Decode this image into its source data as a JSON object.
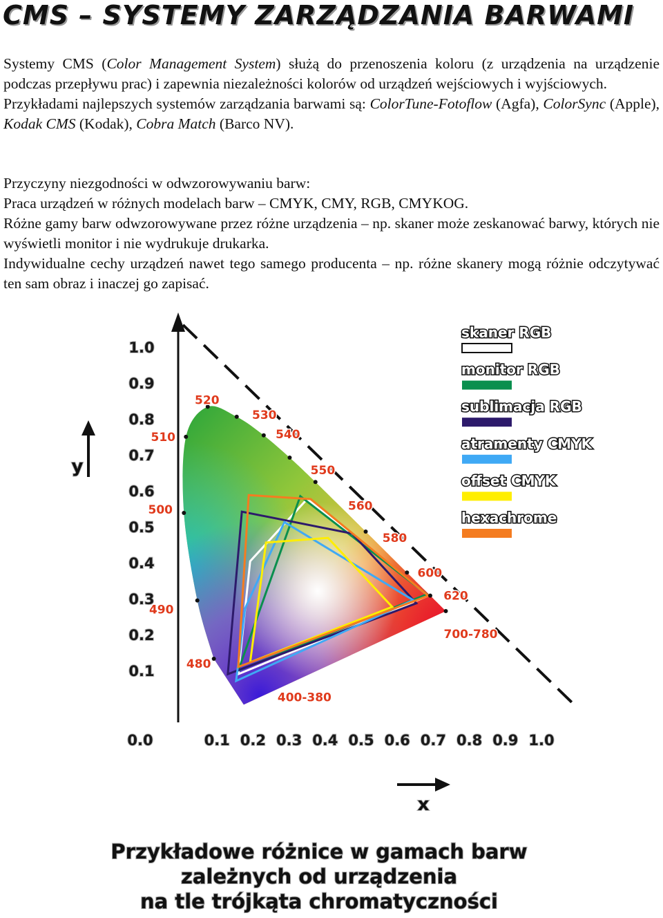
{
  "header": {
    "title": "CMS – SYSTEMY ZARZĄDZANIA BARWAMI"
  },
  "intro": [
    "Systemy CMS (",
    "Color Management System",
    ") służą do przenoszenia koloru (z urządzenia na urządzenie podczas przepływu prac) i zapewnia niezależności kolorów od urządzeń wejściowych i wyjściowych.",
    "Przykładami najlepszych systemów zarządzania barwami są:",
    "ColorTune-Fotoflow",
    "(Agfa),",
    "ColorSync",
    "(Apple),",
    "Kodak CMS",
    "(Kodak),",
    "Cobra Match",
    "(Barco NV)."
  ],
  "causes": {
    "heading": "Przyczyny niezgodności w odwzorowywaniu barw:",
    "items": [
      "Praca urządzeń w różnych modelach barw – CMYK, CMY, RGB, CMYKOG.",
      "Różne gamy barw odwzorowywane przez różne urządzenia – np. skaner może zeskanować barwy, których nie wyświetli monitor i nie wydrukuje drukarka.",
      "Indywidualne cechy urządzeń nawet tego samego producenta – np. różne skanery mogą różnie odczytywać ten sam obraz i inaczej go zapisać."
    ]
  },
  "figure": {
    "type": "gamut",
    "x_label": "x",
    "y_label": "y",
    "origin_label": "0.0",
    "xlim": [
      0,
      1
    ],
    "ylim": [
      0,
      1
    ],
    "xticks": [
      0.1,
      0.2,
      0.3,
      0.4,
      0.5,
      0.6,
      0.7,
      0.8,
      0.9,
      {
        "value": 1,
        "label": "1.0"
      }
    ],
    "yticks": [
      0.1,
      0.2,
      0.3,
      0.4,
      0.5,
      0.6,
      0.7,
      0.8,
      0.9,
      {
        "value": 1,
        "label": "1.0"
      }
    ],
    "locus_points": [
      {
        "label": "400-380",
        "x": 0.1741,
        "y": 0.005
      },
      {
        "label": "480",
        "x": 0.0913,
        "y": 0.1327
      },
      {
        "label": "490",
        "x": 0.0454,
        "y": 0.295
      },
      {
        "label": "500",
        "x": 0.0082,
        "y": 0.5384
      },
      {
        "label": "510",
        "x": 0.0139,
        "y": 0.7502
      },
      {
        "label": "520",
        "x": 0.0743,
        "y": 0.8338
      },
      {
        "label": "530",
        "x": 0.1547,
        "y": 0.8059
      },
      {
        "label": "540",
        "x": 0.2296,
        "y": 0.7543
      },
      {
        "label": "550",
        "x": 0.3016,
        "y": 0.6923
      },
      {
        "label": "560",
        "x": 0.3731,
        "y": 0.6245
      },
      {
        "label": "580",
        "x": 0.5125,
        "y": 0.4866
      },
      {
        "label": "600",
        "x": 0.627,
        "y": 0.3725
      },
      {
        "label": "620",
        "x": 0.6915,
        "y": 0.3083
      },
      {
        "label": "700-780",
        "x": 0.7347,
        "y": 0.2653
      }
    ],
    "series": [
      {
        "name": "skaner RGB",
        "color": "#ffffff",
        "x": [
          0.35,
          0.686,
          0.159,
          0.192
        ],
        "y": [
          0.577,
          0.308,
          0.09,
          0.404
        ]
      },
      {
        "name": "monitor RGB",
        "color": "#0a8f4e",
        "x": [
          0.331,
          0.682,
          0.159
        ],
        "y": [
          0.585,
          0.312,
          0.1
        ]
      },
      {
        "name": "sublimacja RGB",
        "color": "#2d1a6b",
        "x": [
          0.169,
          0.475,
          0.653,
          0.13
        ],
        "y": [
          0.542,
          0.481,
          0.287,
          0.09
        ]
      },
      {
        "name": "atramenty CMYK",
        "color": "#3fa9f5",
        "x": [
          0.287,
          0.644,
          0.153,
          0.178
        ],
        "y": [
          0.513,
          0.296,
          0.071,
          0.273
        ]
      },
      {
        "name": "offset CMYK",
        "color": "#ffee00",
        "x": [
          0.236,
          0.408,
          0.586,
          0.192
        ],
        "y": [
          0.456,
          0.469,
          0.277,
          0.123
        ]
      },
      {
        "name": "hexachrome",
        "color": "#f47c20",
        "x": [
          0.188,
          0.36,
          0.686,
          0.159
        ],
        "y": [
          0.588,
          0.577,
          0.308,
          0.11
        ]
      }
    ],
    "caption": [
      "Przykładowe różnice w gamach barw",
      "zależnych od urządzenia",
      "na tle trójkąta chromatyczności"
    ]
  }
}
